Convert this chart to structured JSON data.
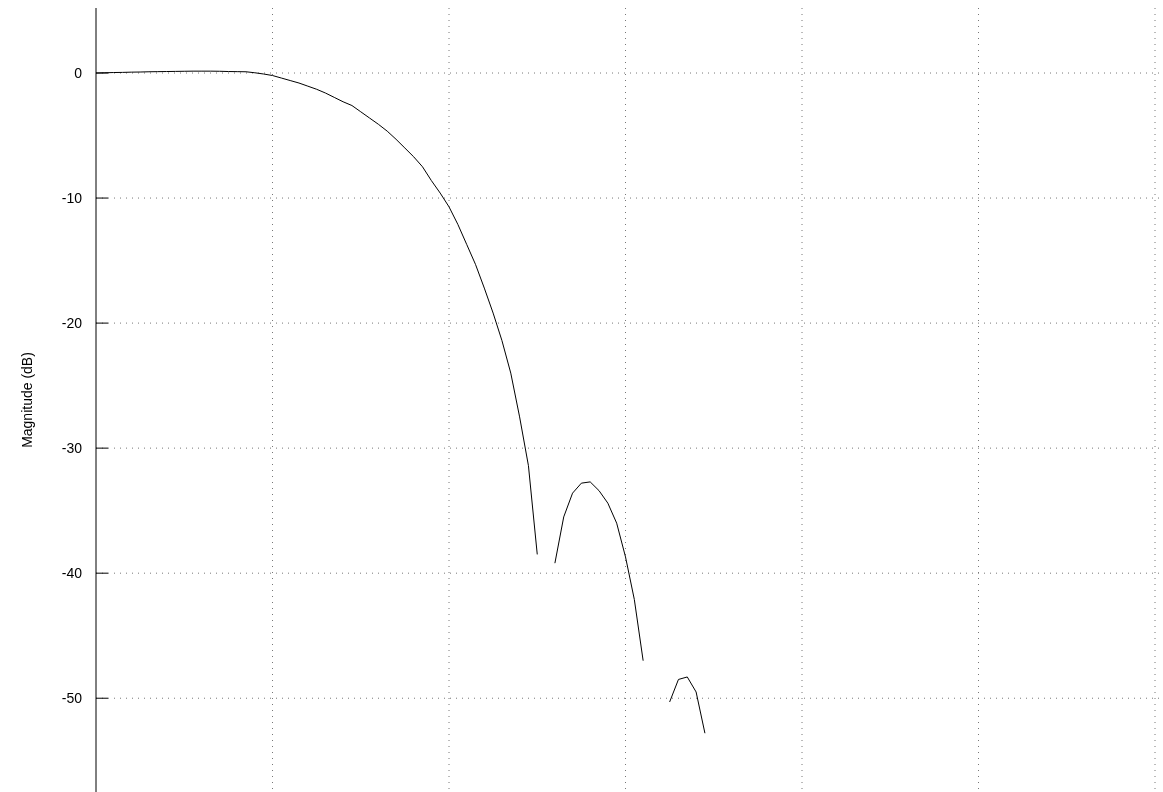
{
  "chart_data": {
    "type": "line",
    "ylabel": "Magnitude (dB)",
    "categories": [
      null,
      null,
      null,
      null,
      null,
      null,
      null,
      null,
      null,
      null,
      null,
      null,
      null,
      null,
      null,
      null,
      null,
      null,
      null,
      null,
      null,
      null,
      null,
      null,
      null,
      null,
      null,
      null,
      null,
      null,
      null,
      null,
      null,
      null,
      null,
      null,
      null,
      null,
      null,
      null,
      null,
      null,
      null,
      null,
      null,
      null,
      null,
      null,
      null,
      null,
      null,
      null,
      null,
      null,
      null,
      null,
      null,
      null,
      null,
      null,
      null,
      null,
      null,
      null,
      null,
      null,
      null,
      null,
      null,
      null,
      null,
      null,
      null,
      null,
      null,
      null,
      null,
      null,
      null,
      null,
      null,
      null,
      null,
      null,
      null,
      null,
      null,
      null,
      null,
      null,
      null,
      null,
      null,
      null,
      null,
      null,
      null,
      null,
      null,
      null,
      null,
      null,
      null,
      null,
      null,
      null,
      null,
      null,
      null,
      null,
      null,
      null,
      null,
      null,
      null,
      null,
      null,
      null,
      null,
      null,
      null
    ],
    "ylim": [
      -57.5,
      5.2
    ],
    "yticks": [
      -50,
      -40,
      -30,
      -20,
      -10,
      0
    ],
    "grid": true,
    "series": [
      {
        "color": "#000000",
        "values": [
          0,
          0.02,
          0.04,
          0.05,
          0.07,
          0.08,
          0.1,
          0.11,
          0.12,
          0.13,
          0.14,
          0.15,
          0.15,
          0.15,
          0.14,
          0.12,
          0.11,
          0.1,
          0.02,
          -0.08,
          -0.2,
          -0.4,
          -0.6,
          -0.8,
          -1.05,
          -1.3,
          -1.6,
          -1.95,
          -2.3,
          -2.6,
          -3.1,
          -3.6,
          -4.1,
          -4.65,
          -5.3,
          -6.0,
          -6.7,
          -7.5,
          -8.6,
          -9.6,
          -10.7,
          -12.1,
          -13.7,
          -15.3,
          -17.2,
          -19.2,
          -21.4,
          -24.0,
          -27.5,
          -31.4,
          -38.5,
          null,
          -39.2,
          -35.5,
          -33.6,
          -32.8,
          -32.7,
          -33.4,
          -34.4,
          -36.0,
          -38.7,
          -42.1,
          -47.0,
          null,
          null,
          -50.3,
          -48.5,
          -48.3,
          -49.5,
          -52.8,
          null,
          null,
          null,
          null,
          null,
          null,
          null,
          null,
          null,
          null,
          null,
          null,
          null,
          null,
          null,
          null,
          null,
          null,
          null,
          null,
          null,
          null,
          null,
          null,
          null,
          null,
          null,
          null,
          null,
          null,
          null,
          null,
          null,
          null,
          null,
          null,
          null,
          null,
          null,
          null,
          null,
          null,
          null,
          null,
          null,
          null,
          null,
          null,
          null,
          null,
          null
        ]
      }
    ]
  }
}
